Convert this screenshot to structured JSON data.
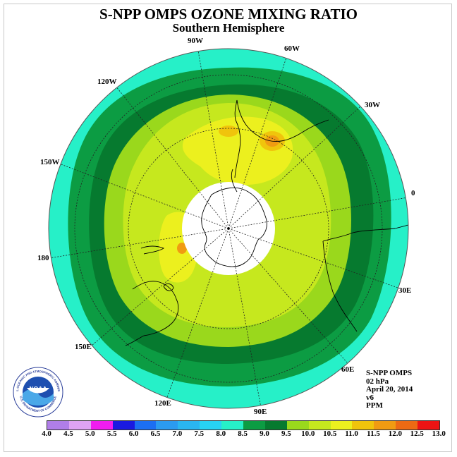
{
  "header": {
    "title": "S-NPP OMPS OZONE MIXING RATIO",
    "subtitle": "Southern Hemisphere"
  },
  "map": {
    "longitude_labels": [
      "90W",
      "60W",
      "30W",
      "0",
      "30E",
      "60E",
      "90E",
      "120E",
      "150E",
      "180",
      "150W",
      "120W"
    ]
  },
  "info": {
    "instrument": "S-NPP OMPS",
    "pressure": "02 hPa",
    "date": "April 20, 2014",
    "version": "v6",
    "units": "PPM"
  },
  "logo": {
    "text": "NOAA",
    "ring_text": "NATIONAL OCEANIC AND ATMOSPHERIC ADMINISTRATION",
    "lower_text": "U.S. DEPARTMENT OF COMMERCE"
  },
  "colorbar": {
    "tick_labels": [
      "4.0",
      "4.5",
      "5.0",
      "5.5",
      "6.0",
      "6.5",
      "7.0",
      "7.5",
      "8.0",
      "8.5",
      "9.0",
      "9.5",
      "10.0",
      "10.5",
      "11.0",
      "11.5",
      "12.0",
      "12.5",
      "13.0"
    ],
    "colors": [
      "#b07ee8",
      "#dfa3f3",
      "#f01df0",
      "#1a1ae0",
      "#1c6ff2",
      "#2b9bf0",
      "#2ab6f0",
      "#27d2f3",
      "#26f0c8",
      "#0c9c43",
      "#067a2f",
      "#9ad81c",
      "#c6e81e",
      "#ecf01e",
      "#f0c40c",
      "#f09b12",
      "#ec6a14",
      "#ec1414",
      "#a06442"
    ]
  }
}
